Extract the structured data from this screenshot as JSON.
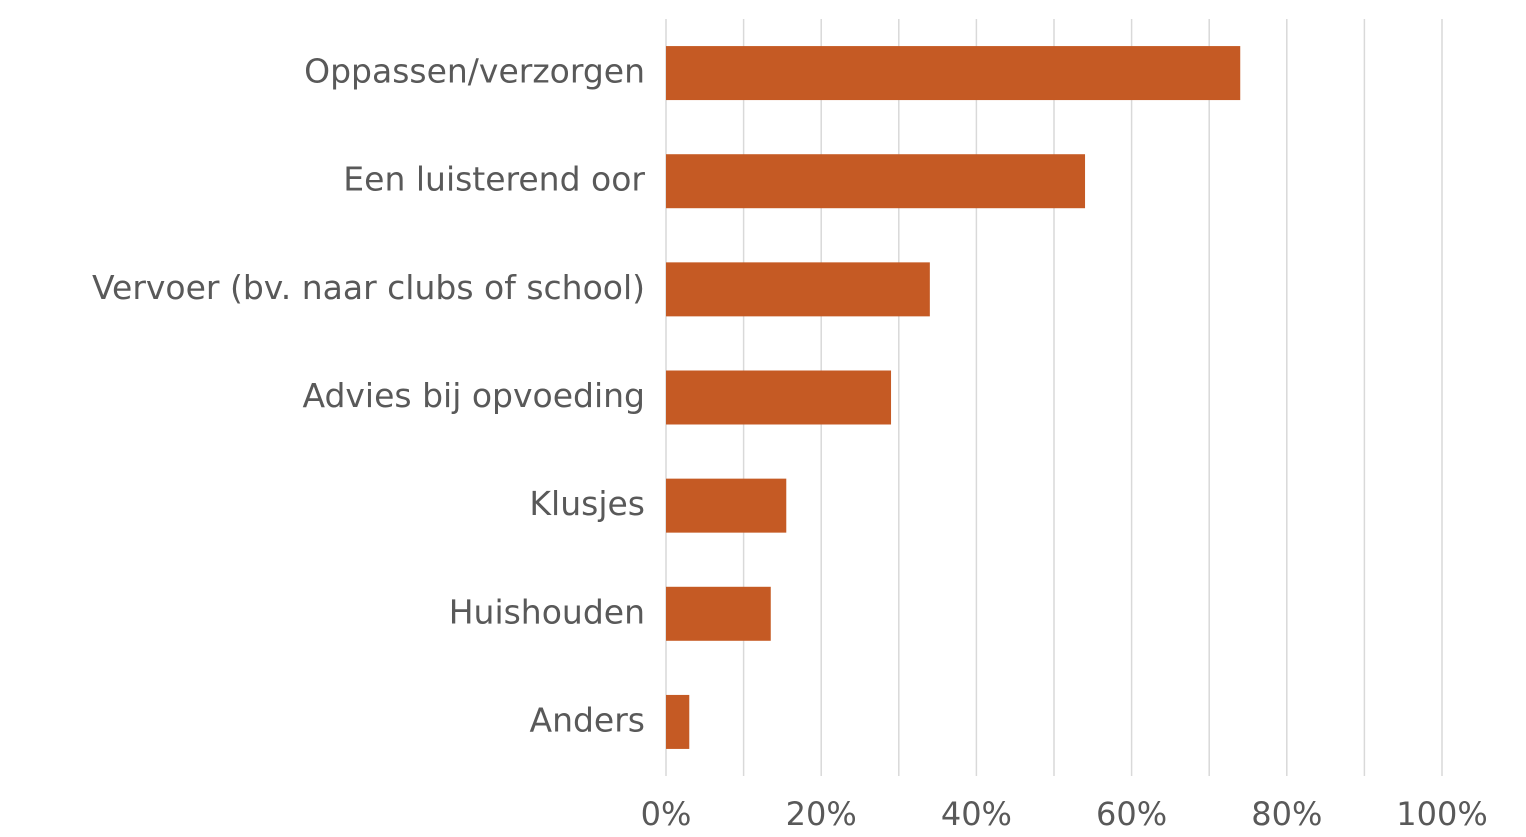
{
  "chart_data": {
    "type": "bar",
    "orientation": "horizontal",
    "categories": [
      "Oppassen/verzorgen",
      "Een luisterend oor",
      "Vervoer (bv. naar clubs of school)",
      "Advies bij opvoeding",
      "Klusjes",
      "Huishouden",
      "Anders"
    ],
    "values": [
      74,
      54,
      34,
      29,
      15.5,
      13.5,
      3
    ],
    "color": "#c55a24",
    "xlim": [
      0,
      100
    ],
    "xticks": [
      {
        "value": 0,
        "label": "0%"
      },
      {
        "value": 20,
        "label": "20%"
      },
      {
        "value": 40,
        "label": "40%"
      },
      {
        "value": 60,
        "label": "60%"
      },
      {
        "value": 80,
        "label": "80%"
      },
      {
        "value": 100,
        "label": "100%"
      }
    ],
    "minor_xticks": [
      10,
      30,
      50,
      70,
      90
    ],
    "grid": true
  }
}
